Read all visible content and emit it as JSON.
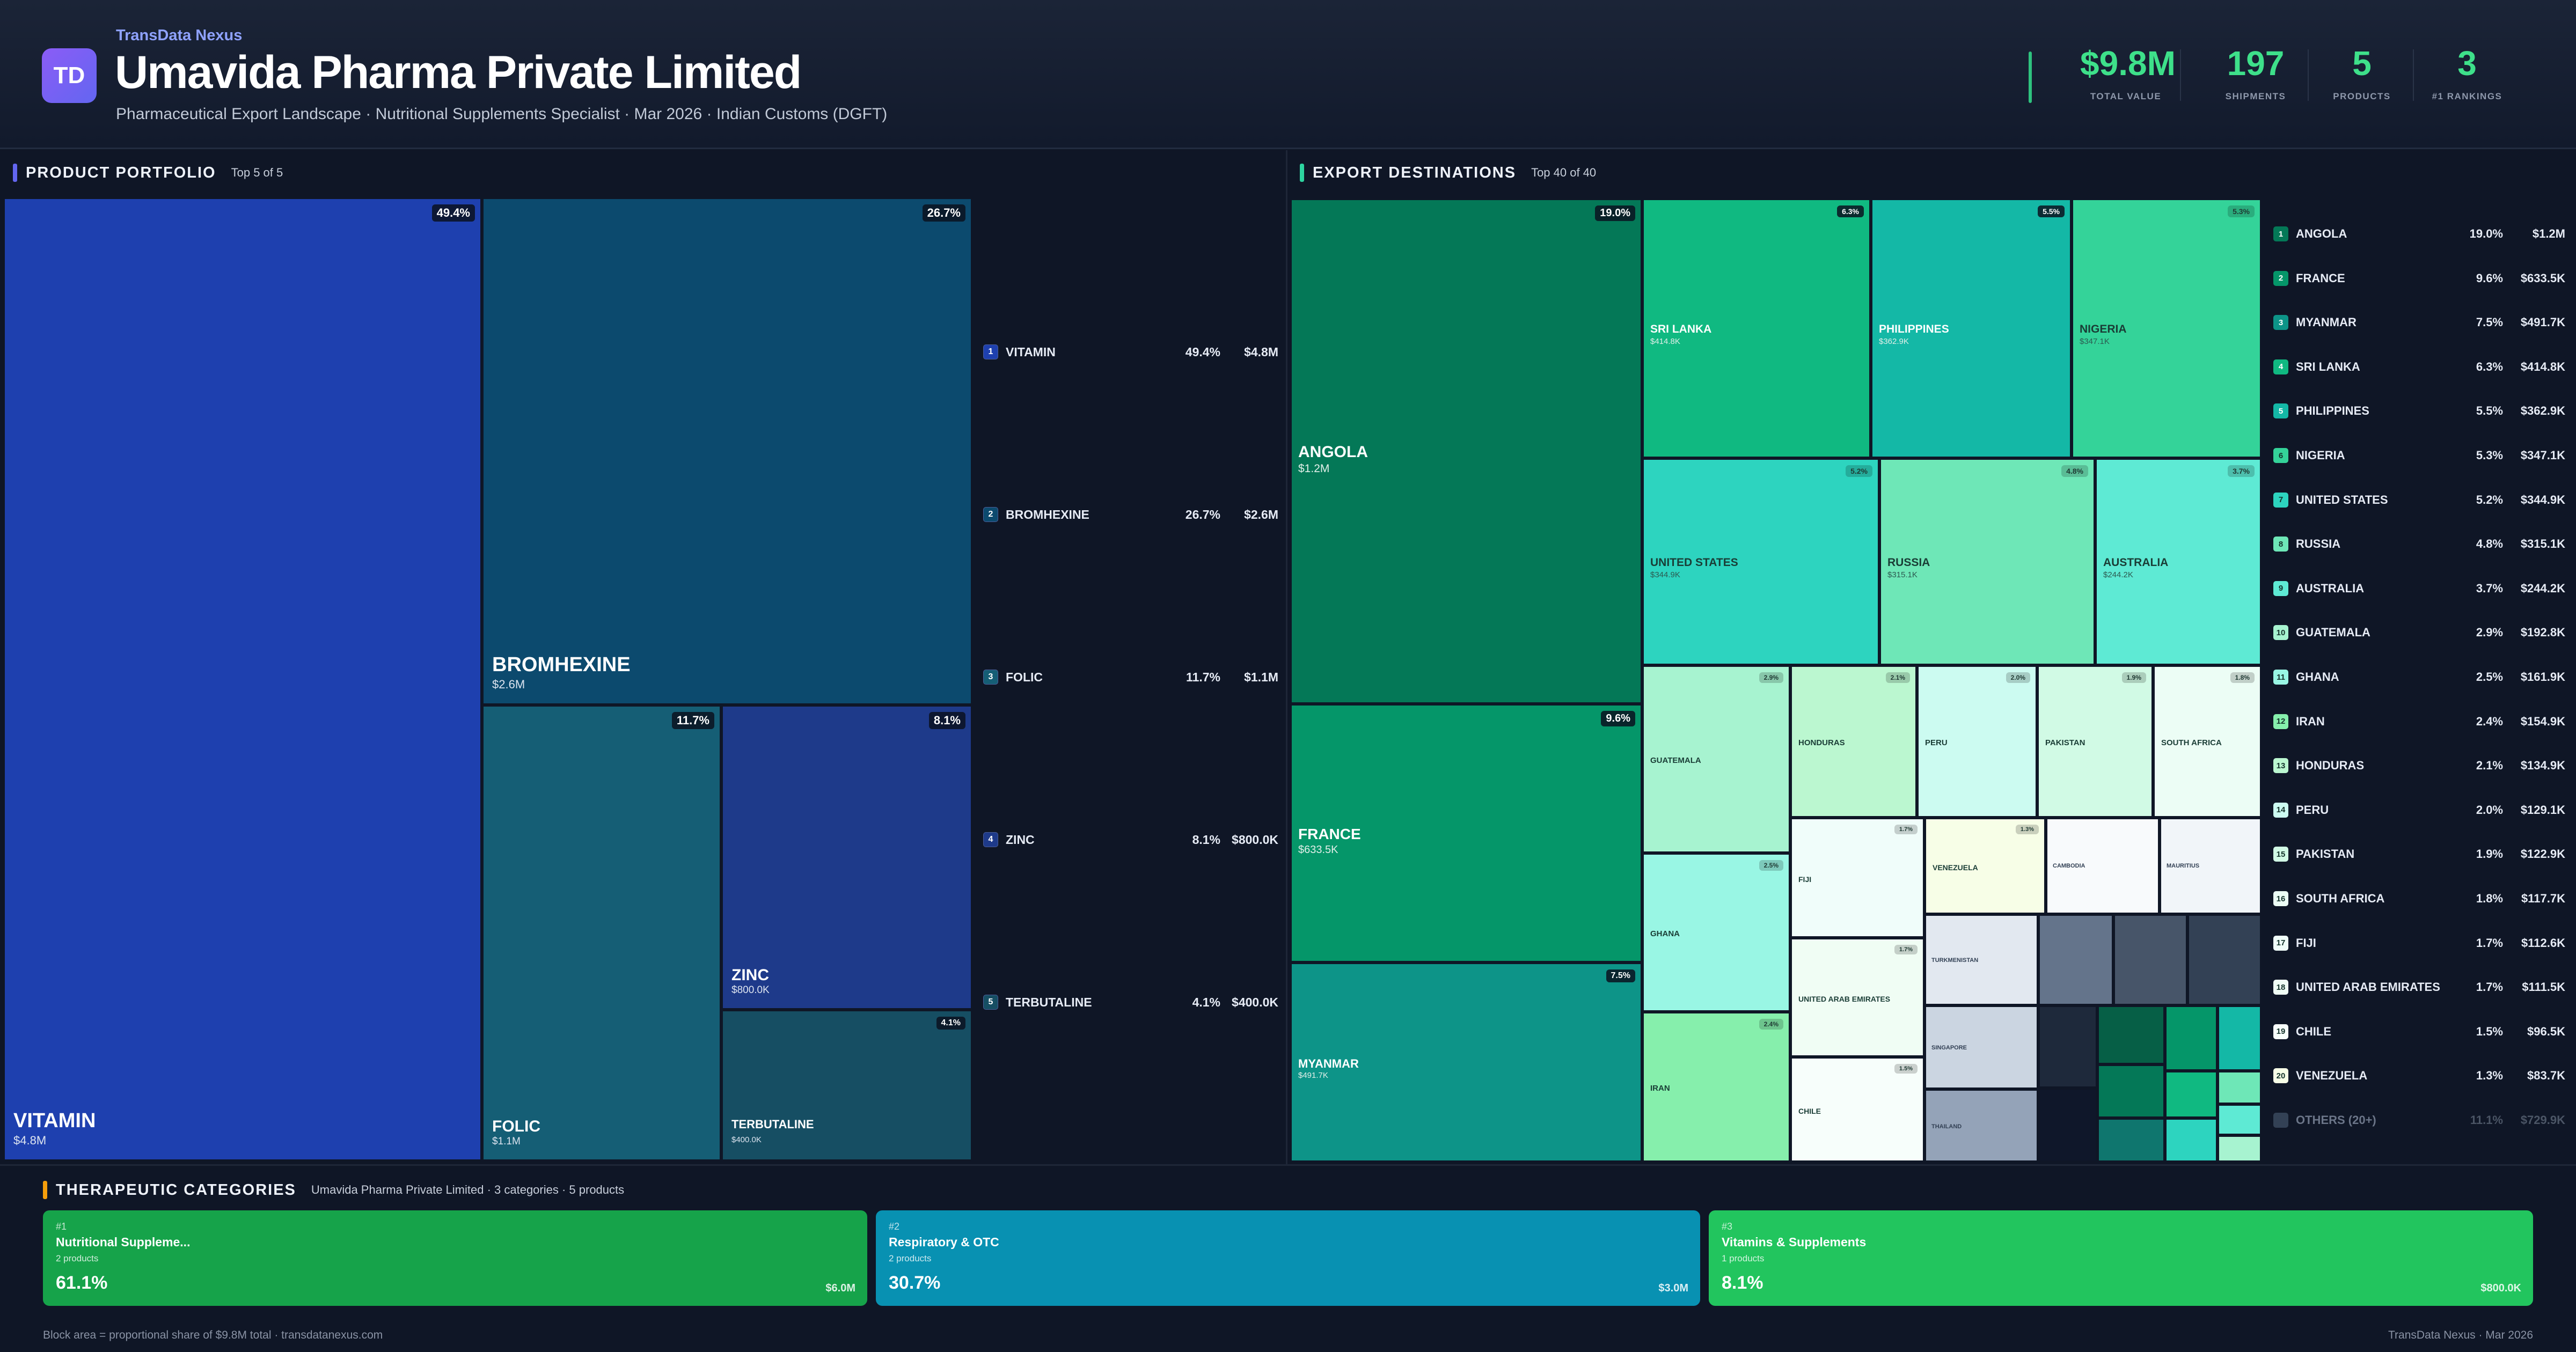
{
  "header": {
    "logo": "TD",
    "brand": "TransData Nexus",
    "title": "Umavida Pharma Private Limited",
    "subtitle": "Pharmaceutical Export Landscape · Nutritional Supplements Specialist · Mar 2026 · Indian Customs (DGFT)"
  },
  "kpis": [
    {
      "value": "$9.8M",
      "label": "TOTAL VALUE"
    },
    {
      "value": "197",
      "label": "SHIPMENTS"
    },
    {
      "value": "5",
      "label": "PRODUCTS"
    },
    {
      "value": "3",
      "label": "#1 RANKINGS"
    }
  ],
  "portfolio": {
    "title": "PRODUCT PORTFOLIO",
    "subtitle": "Top 5 of 5",
    "accent": "#6366f1"
  },
  "destinations": {
    "title": "EXPORT DESTINATIONS",
    "subtitle": "Top 40 of 40",
    "accent": "#2dd4a0"
  },
  "categories_section": {
    "title": "THERAPEUTIC CATEGORIES",
    "subtitle": "Umavida Pharma Private Limited · 3 categories · 5 products",
    "accent": "#f59e0b"
  },
  "chart_data": [
    {
      "type": "treemap",
      "name": "products",
      "items": [
        {
          "rank": "1",
          "label": "VITAMIN",
          "share": "49.4%",
          "value": "$4.8M",
          "color": "#1e40af"
        },
        {
          "rank": "2",
          "label": "BROMHEXINE",
          "share": "26.7%",
          "value": "$2.6M",
          "color": "#0c4a6e"
        },
        {
          "rank": "3",
          "label": "FOLIC",
          "share": "11.7%",
          "value": "$1.1M",
          "color": "#155e75"
        },
        {
          "rank": "4",
          "label": "ZINC",
          "share": "8.1%",
          "value": "$800.0K",
          "color": "#1e3a8a"
        },
        {
          "rank": "5",
          "label": "TERBUTALINE",
          "share": "4.1%",
          "value": "$400.0K",
          "color": "#164e63"
        }
      ]
    },
    {
      "type": "treemap",
      "name": "destinations",
      "items": [
        {
          "rank": "1",
          "label": "ANGOLA",
          "share": "19.0%",
          "value": "$1.2M",
          "color": "#047857"
        },
        {
          "rank": "2",
          "label": "FRANCE",
          "share": "9.6%",
          "value": "$633.5K",
          "color": "#059669"
        },
        {
          "rank": "3",
          "label": "MYANMAR",
          "share": "7.5%",
          "value": "$491.7K",
          "color": "#0d9488"
        },
        {
          "rank": "4",
          "label": "SRI LANKA",
          "share": "6.3%",
          "value": "$414.8K",
          "color": "#10b981"
        },
        {
          "rank": "5",
          "label": "PHILIPPINES",
          "share": "5.5%",
          "value": "$362.9K",
          "color": "#14b8a6"
        },
        {
          "rank": "6",
          "label": "NIGERIA",
          "share": "5.3%",
          "value": "$347.1K",
          "color": "#34d399"
        },
        {
          "rank": "7",
          "label": "UNITED STATES",
          "share": "5.2%",
          "value": "$344.9K",
          "color": "#2dd4bf"
        },
        {
          "rank": "8",
          "label": "RUSSIA",
          "share": "4.8%",
          "value": "$315.1K",
          "color": "#6ee7b7"
        },
        {
          "rank": "9",
          "label": "AUSTRALIA",
          "share": "3.7%",
          "value": "$244.2K",
          "color": "#5eead4"
        },
        {
          "rank": "10",
          "label": "GUATEMALA",
          "share": "2.9%",
          "value": "$192.8K",
          "color": "#a7f3d0"
        },
        {
          "rank": "11",
          "label": "GHANA",
          "share": "2.5%",
          "value": "$161.9K",
          "color": "#99f6e4"
        },
        {
          "rank": "12",
          "label": "IRAN",
          "share": "2.4%",
          "value": "$154.9K",
          "color": "#86efac"
        },
        {
          "rank": "13",
          "label": "HONDURAS",
          "share": "2.1%",
          "value": "$134.9K",
          "color": "#bbf7d0"
        },
        {
          "rank": "14",
          "label": "PERU",
          "share": "2.0%",
          "value": "$129.1K",
          "color": "#ccfbf1"
        },
        {
          "rank": "15",
          "label": "PAKISTAN",
          "share": "1.9%",
          "value": "$122.9K",
          "color": "#d1fae5"
        },
        {
          "rank": "16",
          "label": "SOUTH AFRICA",
          "share": "1.8%",
          "value": "$117.7K",
          "color": "#ecfdf5"
        },
        {
          "rank": "17",
          "label": "FIJI",
          "share": "1.7%",
          "value": "$112.6K",
          "color": "#f0fdfa"
        },
        {
          "rank": "18",
          "label": "UNITED ARAB EMIRATES",
          "share": "1.7%",
          "value": "$111.5K",
          "color": "#f0fdf4"
        },
        {
          "rank": "19",
          "label": "CHILE",
          "share": "1.5%",
          "value": "$96.5K",
          "color": "#f7fefb"
        },
        {
          "rank": "20",
          "label": "VENEZUELA",
          "share": "1.3%",
          "value": "$83.7K",
          "color": "#f7fee7"
        },
        {
          "rank": "",
          "label": "OTHERS (20+)",
          "share": "11.1%",
          "value": "$729.9K",
          "color": "#334155"
        }
      ],
      "small_blocks": [
        {
          "label": "CAMBODIA",
          "color": "#f8fafc"
        },
        {
          "label": "MAURITIUS",
          "color": "#f1f5f9"
        },
        {
          "label": "TURKMENISTAN",
          "color": "#e2e8f0"
        },
        {
          "label": "SINGAPORE",
          "color": "#cbd5e1"
        },
        {
          "label": "THAILAND",
          "color": "#94a3b8"
        }
      ]
    }
  ],
  "categories": [
    {
      "rank": "#1",
      "name": "Nutritional Suppleme...",
      "count": "2 products",
      "share": "61.1%",
      "value": "$6.0M",
      "color": "#16a34a"
    },
    {
      "rank": "#2",
      "name": "Respiratory & OTC",
      "count": "2 products",
      "share": "30.7%",
      "value": "$3.0M",
      "color": "#0891b2"
    },
    {
      "rank": "#3",
      "name": "Vitamins & Supplements",
      "count": "1 products",
      "share": "8.1%",
      "value": "$800.0K",
      "color": "#22c55e"
    }
  ],
  "footer": {
    "left": "Block area = proportional share of $9.8M total · transdatanexus.com",
    "right": "TransData Nexus · Mar 2026"
  }
}
